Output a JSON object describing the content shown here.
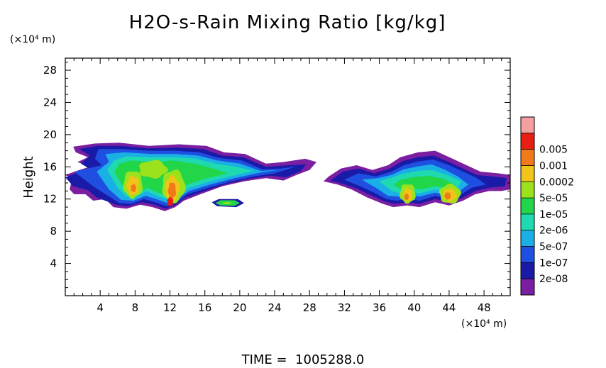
{
  "chart_data": {
    "type": "heatmap",
    "title": "H2O-s-Rain Mixing Ratio [kg/kg]",
    "ylabel": "Height",
    "xunit": "(×10⁴ m)",
    "yunit": "(×10⁴ m)",
    "xlim": [
      0,
      51
    ],
    "ylim": [
      0,
      29.5
    ],
    "xticks": [
      4,
      8,
      12,
      16,
      20,
      24,
      28,
      32,
      36,
      40,
      44,
      48
    ],
    "yticks": [
      4,
      8,
      12,
      16,
      20,
      24,
      28
    ],
    "colorbar": {
      "levels": [
        "2e-08",
        "1e-07",
        "5e-07",
        "2e-06",
        "1e-05",
        "5e-05",
        "0.0002",
        "0.001",
        "0.005"
      ],
      "colors": [
        "#7a1fa2",
        "#1a1aa8",
        "#1f4fe0",
        "#1ab0e6",
        "#1fd9b0",
        "#22d64a",
        "#9be21c",
        "#f0c418",
        "#f07a18",
        "#e81e12",
        "#f4a0a0"
      ]
    },
    "regions": [
      {
        "name": "left cloud band",
        "x_range": [
          0,
          29
        ],
        "y_range": [
          10.5,
          19
        ],
        "cores": [
          {
            "x": 8,
            "y": 13.5,
            "level": 7
          },
          {
            "x": 12,
            "y": 13,
            "level": 8
          }
        ]
      },
      {
        "name": "small patch",
        "x_range": [
          16.8,
          20.5
        ],
        "y_range": [
          11,
          12
        ],
        "cores": []
      },
      {
        "name": "right cloud band",
        "x_range": [
          30,
          51
        ],
        "y_range": [
          11,
          18
        ],
        "cores": [
          {
            "x": 39.5,
            "y": 12.5,
            "level": 7
          },
          {
            "x": 44,
            "y": 12.5,
            "level": 7
          }
        ]
      }
    ]
  },
  "footer": {
    "time_text": "TIME =  1005288.0"
  }
}
